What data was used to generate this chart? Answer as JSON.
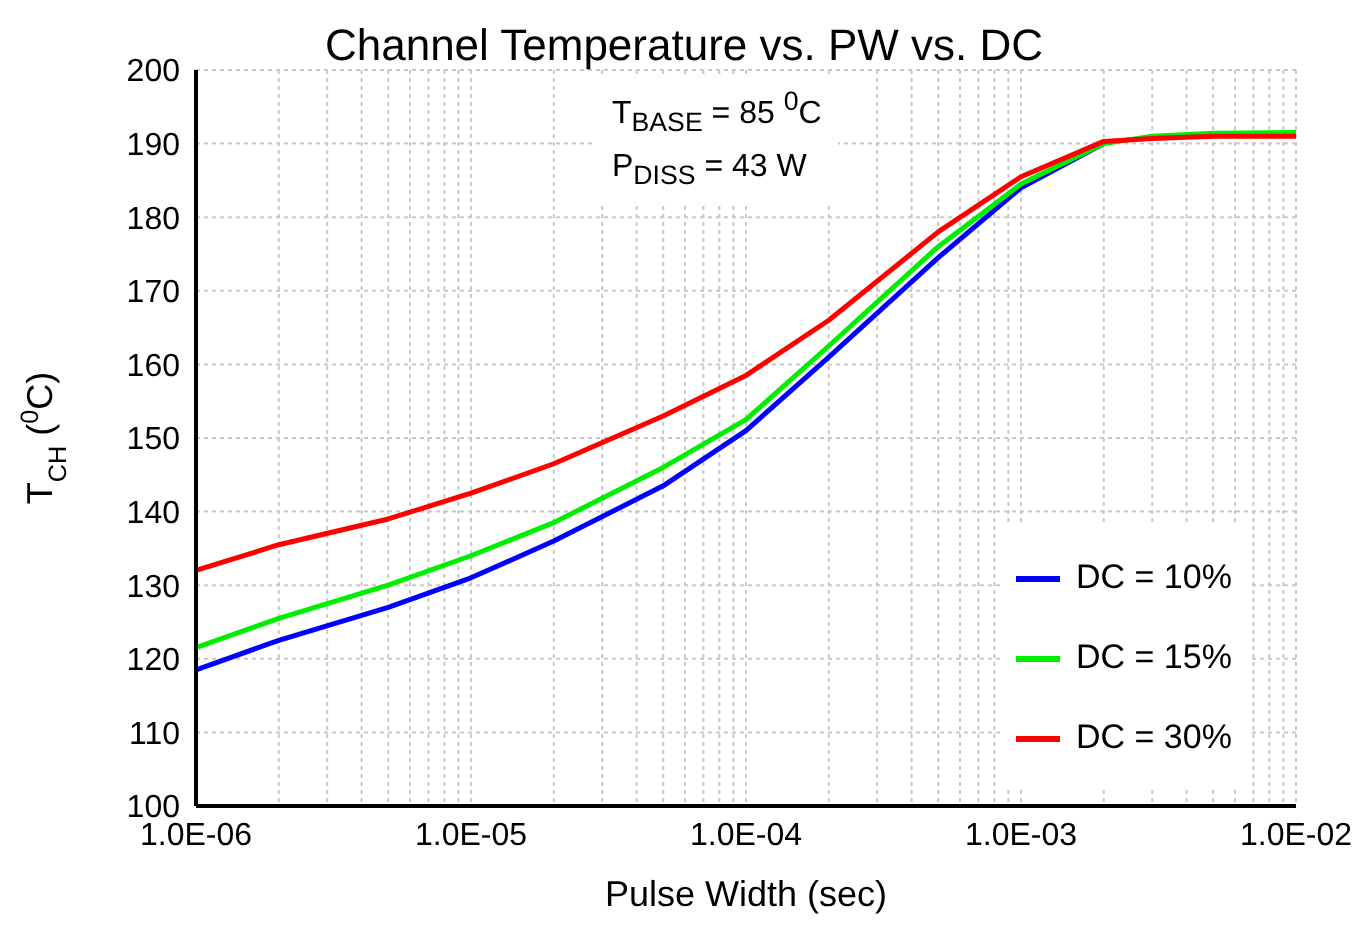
{
  "chart_data": {
    "type": "line",
    "title": "Channel Temperature vs. PW vs. DC",
    "xlabel": "Pulse Width (sec)",
    "ylabel": "T$_{CH}$ ($^{0}$C)",
    "annotations": [
      "T$_{BASE}$ = 85 $^{0}$C",
      "P$_{DISS}$ = 43 W"
    ],
    "x": [
      1e-06,
      2e-06,
      5e-06,
      1e-05,
      2e-05,
      5e-05,
      0.0001,
      0.0002,
      0.0005,
      0.001,
      0.002,
      0.003,
      0.005,
      0.01
    ],
    "series": [
      {
        "name": "DC = 10%",
        "color": "#0000ff",
        "values": [
          118.5,
          122.5,
          127,
          131,
          136,
          143.5,
          151,
          161,
          174.5,
          184,
          190,
          null,
          null,
          null
        ]
      },
      {
        "name": "DC = 15%",
        "color": "#00ee00",
        "values": [
          121.5,
          125.5,
          130,
          134,
          138.5,
          146,
          152.5,
          162.5,
          176,
          184.5,
          190,
          191,
          191.4,
          191.5
        ]
      },
      {
        "name": "DC = 30%",
        "color": "#ff0000",
        "values": [
          132,
          135.5,
          139,
          142.5,
          146.5,
          153,
          158.5,
          166,
          178,
          185.5,
          190.3,
          190.7,
          191,
          191
        ]
      }
    ],
    "log": "x",
    "xlim": [
      1e-06,
      0.01
    ],
    "xticks": [
      {
        "value": 1e-06,
        "label": "1.0E-06"
      },
      {
        "value": 2e-06,
        "label": null
      },
      {
        "value": 3e-06,
        "label": null
      },
      {
        "value": 4e-06,
        "label": null
      },
      {
        "value": 5e-06,
        "label": null
      },
      {
        "value": 6e-06,
        "label": null
      },
      {
        "value": 7e-06,
        "label": null
      },
      {
        "value": 8e-06,
        "label": null
      },
      {
        "value": 9e-06,
        "label": null
      },
      {
        "value": 1e-05,
        "label": "1.0E-05"
      },
      {
        "value": 2e-05,
        "label": null
      },
      {
        "value": 3e-05,
        "label": null
      },
      {
        "value": 4e-05,
        "label": null
      },
      {
        "value": 5e-05,
        "label": null
      },
      {
        "value": 6e-05,
        "label": null
      },
      {
        "value": 7e-05,
        "label": null
      },
      {
        "value": 8e-05,
        "label": null
      },
      {
        "value": 9e-05,
        "label": null
      },
      {
        "value": 0.0001,
        "label": "1.0E-04"
      },
      {
        "value": 0.0002,
        "label": null
      },
      {
        "value": 0.0003,
        "label": null
      },
      {
        "value": 0.0004,
        "label": null
      },
      {
        "value": 0.0005,
        "label": null
      },
      {
        "value": 0.0006,
        "label": null
      },
      {
        "value": 0.0007,
        "label": null
      },
      {
        "value": 0.0008,
        "label": null
      },
      {
        "value": 0.0009,
        "label": null
      },
      {
        "value": 0.001,
        "label": "1.0E-03"
      },
      {
        "value": 0.002,
        "label": null
      },
      {
        "value": 0.003,
        "label": null
      },
      {
        "value": 0.004,
        "label": null
      },
      {
        "value": 0.005,
        "label": null
      },
      {
        "value": 0.006,
        "label": null
      },
      {
        "value": 0.007,
        "label": null
      },
      {
        "value": 0.008,
        "label": null
      },
      {
        "value": 0.009,
        "label": null
      },
      {
        "value": 0.01,
        "label": "1.0E-02"
      }
    ],
    "ylim": [
      100,
      200
    ],
    "yticks": [
      100,
      110,
      120,
      130,
      140,
      150,
      160,
      170,
      180,
      190,
      200
    ],
    "grid": true,
    "legend": "bottom right",
    "marker": "none",
    "line_style": "solid"
  }
}
